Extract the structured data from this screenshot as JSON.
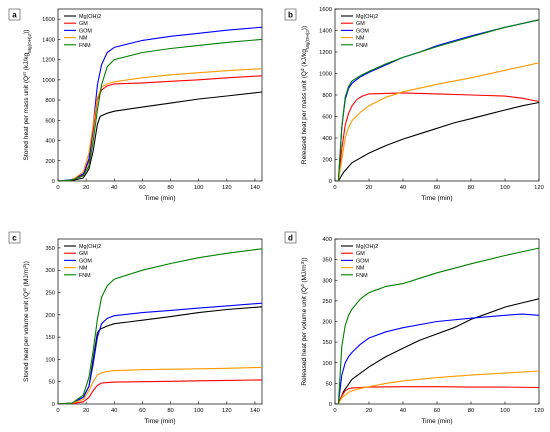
{
  "chart_data": [
    {
      "panel_label": "a",
      "type": "line",
      "xlabel": "Time (min)",
      "ylabel_main": "Stored heat per mass unit (Q",
      "ylabel_sup": "st",
      "ylabel_mid": " (kJ/kg",
      "ylabel_sub": "Mg(OH)2",
      "ylabel_end": "))",
      "xlim": [
        0,
        145
      ],
      "ylim": [
        0,
        1700
      ],
      "xticks": [
        "0",
        "20",
        "40",
        "60",
        "80",
        "100",
        "120",
        "140"
      ],
      "yticks": [
        "0",
        "200",
        "400",
        "600",
        "800",
        "1000",
        "1200",
        "1400",
        "1600"
      ],
      "legend_location": "top-left",
      "series": [
        {
          "name": "Mg(OH)2",
          "color": "#000000",
          "x": [
            0,
            10,
            18,
            22,
            25,
            28,
            30,
            35,
            40,
            60,
            80,
            100,
            120,
            145
          ],
          "y": [
            0,
            5,
            30,
            120,
            300,
            560,
            640,
            670,
            690,
            730,
            770,
            810,
            840,
            880
          ]
        },
        {
          "name": "GM",
          "color": "#ff0000",
          "x": [
            0,
            10,
            18,
            22,
            25,
            28,
            31,
            35,
            40,
            60,
            80,
            100,
            120,
            145
          ],
          "y": [
            0,
            10,
            60,
            200,
            500,
            800,
            900,
            940,
            960,
            970,
            985,
            1000,
            1020,
            1040
          ]
        },
        {
          "name": "GOM",
          "color": "#0000ff",
          "x": [
            0,
            10,
            18,
            22,
            25,
            28,
            31,
            35,
            40,
            60,
            80,
            100,
            120,
            145
          ],
          "y": [
            0,
            15,
            70,
            220,
            550,
            950,
            1150,
            1270,
            1320,
            1390,
            1430,
            1460,
            1490,
            1520
          ]
        },
        {
          "name": "NM",
          "color": "#ff9900",
          "x": [
            0,
            10,
            18,
            22,
            25,
            28,
            31,
            35,
            40,
            60,
            80,
            100,
            120,
            145
          ],
          "y": [
            0,
            10,
            90,
            280,
            560,
            820,
            930,
            960,
            980,
            1020,
            1050,
            1070,
            1090,
            1110
          ]
        },
        {
          "name": "FNM",
          "color": "#008000",
          "x": [
            0,
            10,
            18,
            22,
            25,
            28,
            31,
            35,
            40,
            60,
            80,
            100,
            120,
            145
          ],
          "y": [
            0,
            10,
            50,
            150,
            400,
            700,
            950,
            1130,
            1200,
            1270,
            1310,
            1340,
            1370,
            1400
          ]
        }
      ]
    },
    {
      "panel_label": "b",
      "type": "line",
      "xlabel": "Time (min)",
      "ylabel_main": "Released heat per mass unit (Q",
      "ylabel_sup": "d",
      "ylabel_mid": " (kJ/kg",
      "ylabel_sub": "Mg(OH)2",
      "ylabel_end": "))",
      "xlim": [
        0,
        120
      ],
      "ylim": [
        0,
        1600
      ],
      "xticks": [
        "0",
        "20",
        "40",
        "60",
        "80",
        "100",
        "120"
      ],
      "yticks": [
        "0",
        "200",
        "400",
        "600",
        "800",
        "1000",
        "1200",
        "1400",
        "1600"
      ],
      "legend_location": "top-left",
      "series": [
        {
          "name": "Mg(OH)2",
          "color": "#000000",
          "x": [
            2,
            5,
            10,
            20,
            30,
            40,
            50,
            60,
            70,
            80,
            90,
            100,
            110,
            120
          ],
          "y": [
            0,
            80,
            170,
            260,
            330,
            390,
            440,
            490,
            540,
            580,
            620,
            660,
            700,
            730
          ]
        },
        {
          "name": "GM",
          "color": "#ff0000",
          "x": [
            2,
            4,
            6,
            8,
            10,
            13,
            16,
            20,
            30,
            40,
            60,
            80,
            100,
            110,
            120
          ],
          "y": [
            0,
            300,
            520,
            630,
            700,
            760,
            790,
            810,
            815,
            820,
            810,
            800,
            790,
            770,
            740
          ]
        },
        {
          "name": "GOM",
          "color": "#0000ff",
          "x": [
            2,
            4,
            6,
            8,
            10,
            15,
            20,
            30,
            40,
            50,
            60,
            80,
            100,
            120
          ],
          "y": [
            0,
            500,
            760,
            860,
            910,
            970,
            1010,
            1080,
            1150,
            1200,
            1260,
            1350,
            1430,
            1500
          ]
        },
        {
          "name": "NM",
          "color": "#ff9900",
          "x": [
            2,
            4,
            6,
            8,
            10,
            15,
            20,
            30,
            40,
            60,
            80,
            100,
            120
          ],
          "y": [
            0,
            200,
            400,
            500,
            560,
            640,
            700,
            780,
            830,
            900,
            960,
            1030,
            1100
          ]
        },
        {
          "name": "FNM",
          "color": "#008000",
          "x": [
            2,
            4,
            6,
            8,
            10,
            15,
            20,
            30,
            40,
            50,
            60,
            80,
            100,
            120
          ],
          "y": [
            0,
            500,
            780,
            880,
            930,
            980,
            1020,
            1090,
            1150,
            1200,
            1250,
            1340,
            1430,
            1500
          ]
        }
      ]
    },
    {
      "panel_label": "c",
      "type": "line",
      "xlabel": "Time (min)",
      "ylabel_main": "Stored heat per volume unit (Q",
      "ylabel_sup": "st",
      "ylabel_mid": " (MJ/m",
      "ylabel_sub": "",
      "ylabel_end": "3",
      "ylabel_tail": "))",
      "xlim": [
        0,
        145
      ],
      "ylim": [
        0,
        370
      ],
      "xticks": [
        "0",
        "20",
        "40",
        "60",
        "80",
        "100",
        "120",
        "140"
      ],
      "yticks": [
        "0",
        "50",
        "100",
        "150",
        "200",
        "250",
        "300",
        "350"
      ],
      "legend_location": "top-left",
      "series": [
        {
          "name": "Mg(OH)2",
          "color": "#000000",
          "x": [
            0,
            10,
            18,
            22,
            25,
            28,
            30,
            35,
            40,
            60,
            80,
            100,
            120,
            145
          ],
          "y": [
            0,
            2,
            15,
            40,
            100,
            160,
            168,
            175,
            180,
            188,
            196,
            205,
            212,
            218
          ]
        },
        {
          "name": "GM",
          "color": "#ff0000",
          "x": [
            0,
            10,
            18,
            22,
            25,
            28,
            31,
            35,
            40,
            60,
            80,
            100,
            120,
            145
          ],
          "y": [
            0,
            1,
            5,
            15,
            30,
            42,
            47,
            48,
            49,
            50,
            51,
            52,
            53,
            54
          ]
        },
        {
          "name": "GOM",
          "color": "#0000ff",
          "x": [
            0,
            10,
            18,
            22,
            25,
            28,
            31,
            35,
            40,
            60,
            80,
            100,
            120,
            145
          ],
          "y": [
            0,
            2,
            15,
            40,
            90,
            150,
            180,
            192,
            198,
            205,
            210,
            215,
            220,
            226
          ]
        },
        {
          "name": "NM",
          "color": "#ff9900",
          "x": [
            0,
            10,
            18,
            22,
            25,
            28,
            31,
            35,
            40,
            60,
            80,
            100,
            120,
            145
          ],
          "y": [
            0,
            2,
            10,
            30,
            50,
            65,
            70,
            73,
            75,
            77,
            78,
            79,
            80,
            82
          ]
        },
        {
          "name": "FNM",
          "color": "#008000",
          "x": [
            0,
            10,
            18,
            22,
            25,
            28,
            31,
            35,
            40,
            60,
            80,
            100,
            120,
            145
          ],
          "y": [
            0,
            2,
            20,
            60,
            120,
            190,
            240,
            265,
            280,
            300,
            315,
            328,
            338,
            348
          ]
        }
      ]
    },
    {
      "panel_label": "d",
      "type": "line",
      "xlabel": "Time (min)",
      "ylabel_main": "Released heat per volume unit (Q",
      "ylabel_sup": "d",
      "ylabel_mid": " (MJ/m",
      "ylabel_sub": "",
      "ylabel_end": "3",
      "ylabel_tail": "))",
      "xlim": [
        0,
        120
      ],
      "ylim": [
        0,
        400
      ],
      "xticks": [
        "0",
        "20",
        "40",
        "60",
        "80",
        "100",
        "120"
      ],
      "yticks": [
        "0",
        "50",
        "100",
        "150",
        "200",
        "250",
        "300",
        "350",
        "400"
      ],
      "legend_location": "top-left",
      "series": [
        {
          "name": "Mg(OH)2",
          "color": "#000000",
          "x": [
            2,
            5,
            10,
            20,
            30,
            40,
            50,
            60,
            70,
            80,
            90,
            100,
            110,
            120
          ],
          "y": [
            0,
            30,
            60,
            90,
            115,
            135,
            155,
            170,
            185,
            205,
            220,
            235,
            245,
            255
          ]
        },
        {
          "name": "GM",
          "color": "#ff0000",
          "x": [
            2,
            4,
            6,
            8,
            10,
            15,
            20,
            40,
            60,
            80,
            100,
            120
          ],
          "y": [
            0,
            20,
            32,
            37,
            39,
            40,
            41,
            42,
            42,
            41,
            41,
            40
          ]
        },
        {
          "name": "GOM",
          "color": "#0000ff",
          "x": [
            2,
            4,
            6,
            8,
            10,
            15,
            20,
            30,
            40,
            60,
            80,
            100,
            110,
            120
          ],
          "y": [
            0,
            70,
            100,
            115,
            125,
            145,
            160,
            175,
            185,
            200,
            208,
            215,
            218,
            215
          ]
        },
        {
          "name": "NM",
          "color": "#ff9900",
          "x": [
            2,
            4,
            6,
            8,
            10,
            15,
            20,
            30,
            40,
            60,
            80,
            100,
            120
          ],
          "y": [
            0,
            15,
            22,
            28,
            32,
            38,
            42,
            50,
            56,
            64,
            70,
            75,
            80
          ]
        },
        {
          "name": "FNM",
          "color": "#008000",
          "x": [
            2,
            4,
            6,
            8,
            10,
            15,
            20,
            30,
            40,
            50,
            60,
            80,
            100,
            120
          ],
          "y": [
            0,
            140,
            190,
            215,
            230,
            255,
            270,
            285,
            292,
            305,
            318,
            340,
            360,
            378
          ]
        }
      ]
    }
  ]
}
